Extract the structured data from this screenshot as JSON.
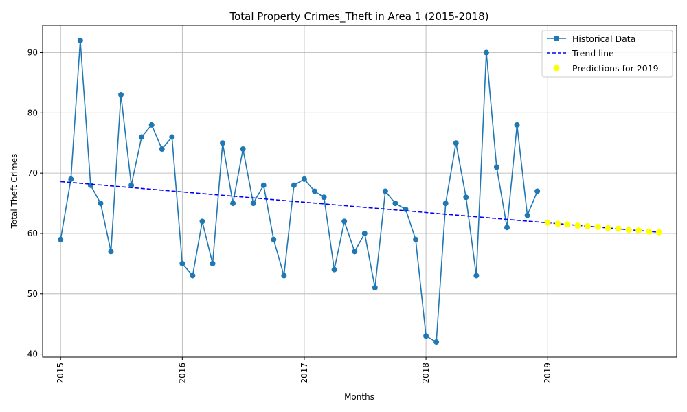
{
  "chart_data": {
    "type": "line",
    "title": "Total Property Crimes_Theft in Area 1 (2015-2018)",
    "xlabel": "Months",
    "ylabel": "Total Theft Crimes",
    "xlim": [
      "2014-11-08",
      "2020-01-23"
    ],
    "ylim": [
      39.5,
      94.5
    ],
    "y_ticks": [
      40,
      50,
      60,
      70,
      80,
      90
    ],
    "x_ticks": [
      {
        "date": "2015-01-01",
        "label": "2015"
      },
      {
        "date": "2016-01-01",
        "label": "2016"
      },
      {
        "date": "2017-01-01",
        "label": "2017"
      },
      {
        "date": "2018-01-01",
        "label": "2018"
      },
      {
        "date": "2019-01-01",
        "label": "2019"
      }
    ],
    "grid": true,
    "legend_position": "top-right",
    "series": [
      {
        "name": "Historical Data",
        "style": "line-with-markers",
        "color": "#1f77b4",
        "x": [
          "2015-01",
          "2015-02",
          "2015-03",
          "2015-04",
          "2015-05",
          "2015-06",
          "2015-07",
          "2015-08",
          "2015-09",
          "2015-10",
          "2015-11",
          "2015-12",
          "2016-01",
          "2016-02",
          "2016-03",
          "2016-04",
          "2016-05",
          "2016-06",
          "2016-07",
          "2016-08",
          "2016-09",
          "2016-10",
          "2016-11",
          "2016-12",
          "2017-01",
          "2017-02",
          "2017-03",
          "2017-04",
          "2017-05",
          "2017-06",
          "2017-07",
          "2017-08",
          "2017-09",
          "2017-10",
          "2017-11",
          "2017-12",
          "2018-01",
          "2018-02",
          "2018-03",
          "2018-04",
          "2018-05",
          "2018-06",
          "2018-07",
          "2018-08",
          "2018-09",
          "2018-10",
          "2018-11",
          "2018-12"
        ],
        "values": [
          59,
          69,
          92,
          68,
          65,
          57,
          83,
          68,
          76,
          78,
          74,
          76,
          55,
          53,
          62,
          55,
          75,
          65,
          74,
          65,
          68,
          59,
          53,
          68,
          69,
          67,
          66,
          54,
          62,
          57,
          60,
          51,
          67,
          65,
          64,
          59,
          43,
          42,
          65,
          75,
          66,
          53,
          90,
          71,
          61,
          78,
          63,
          67
        ]
      },
      {
        "name": "Trend line",
        "style": "dashed-line",
        "color": "#0000ff",
        "x": [
          "2015-01",
          "2019-12"
        ],
        "values": [
          68.6,
          60.2
        ]
      },
      {
        "name": "Predictions for 2019",
        "style": "scatter",
        "color": "#ffff00",
        "x": [
          "2019-01",
          "2019-02",
          "2019-03",
          "2019-04",
          "2019-05",
          "2019-06",
          "2019-07",
          "2019-08",
          "2019-09",
          "2019-10",
          "2019-11",
          "2019-12"
        ],
        "values": [
          61.8,
          61.6,
          61.5,
          61.3,
          61.2,
          61.1,
          60.9,
          60.8,
          60.6,
          60.5,
          60.3,
          60.2
        ]
      }
    ]
  }
}
